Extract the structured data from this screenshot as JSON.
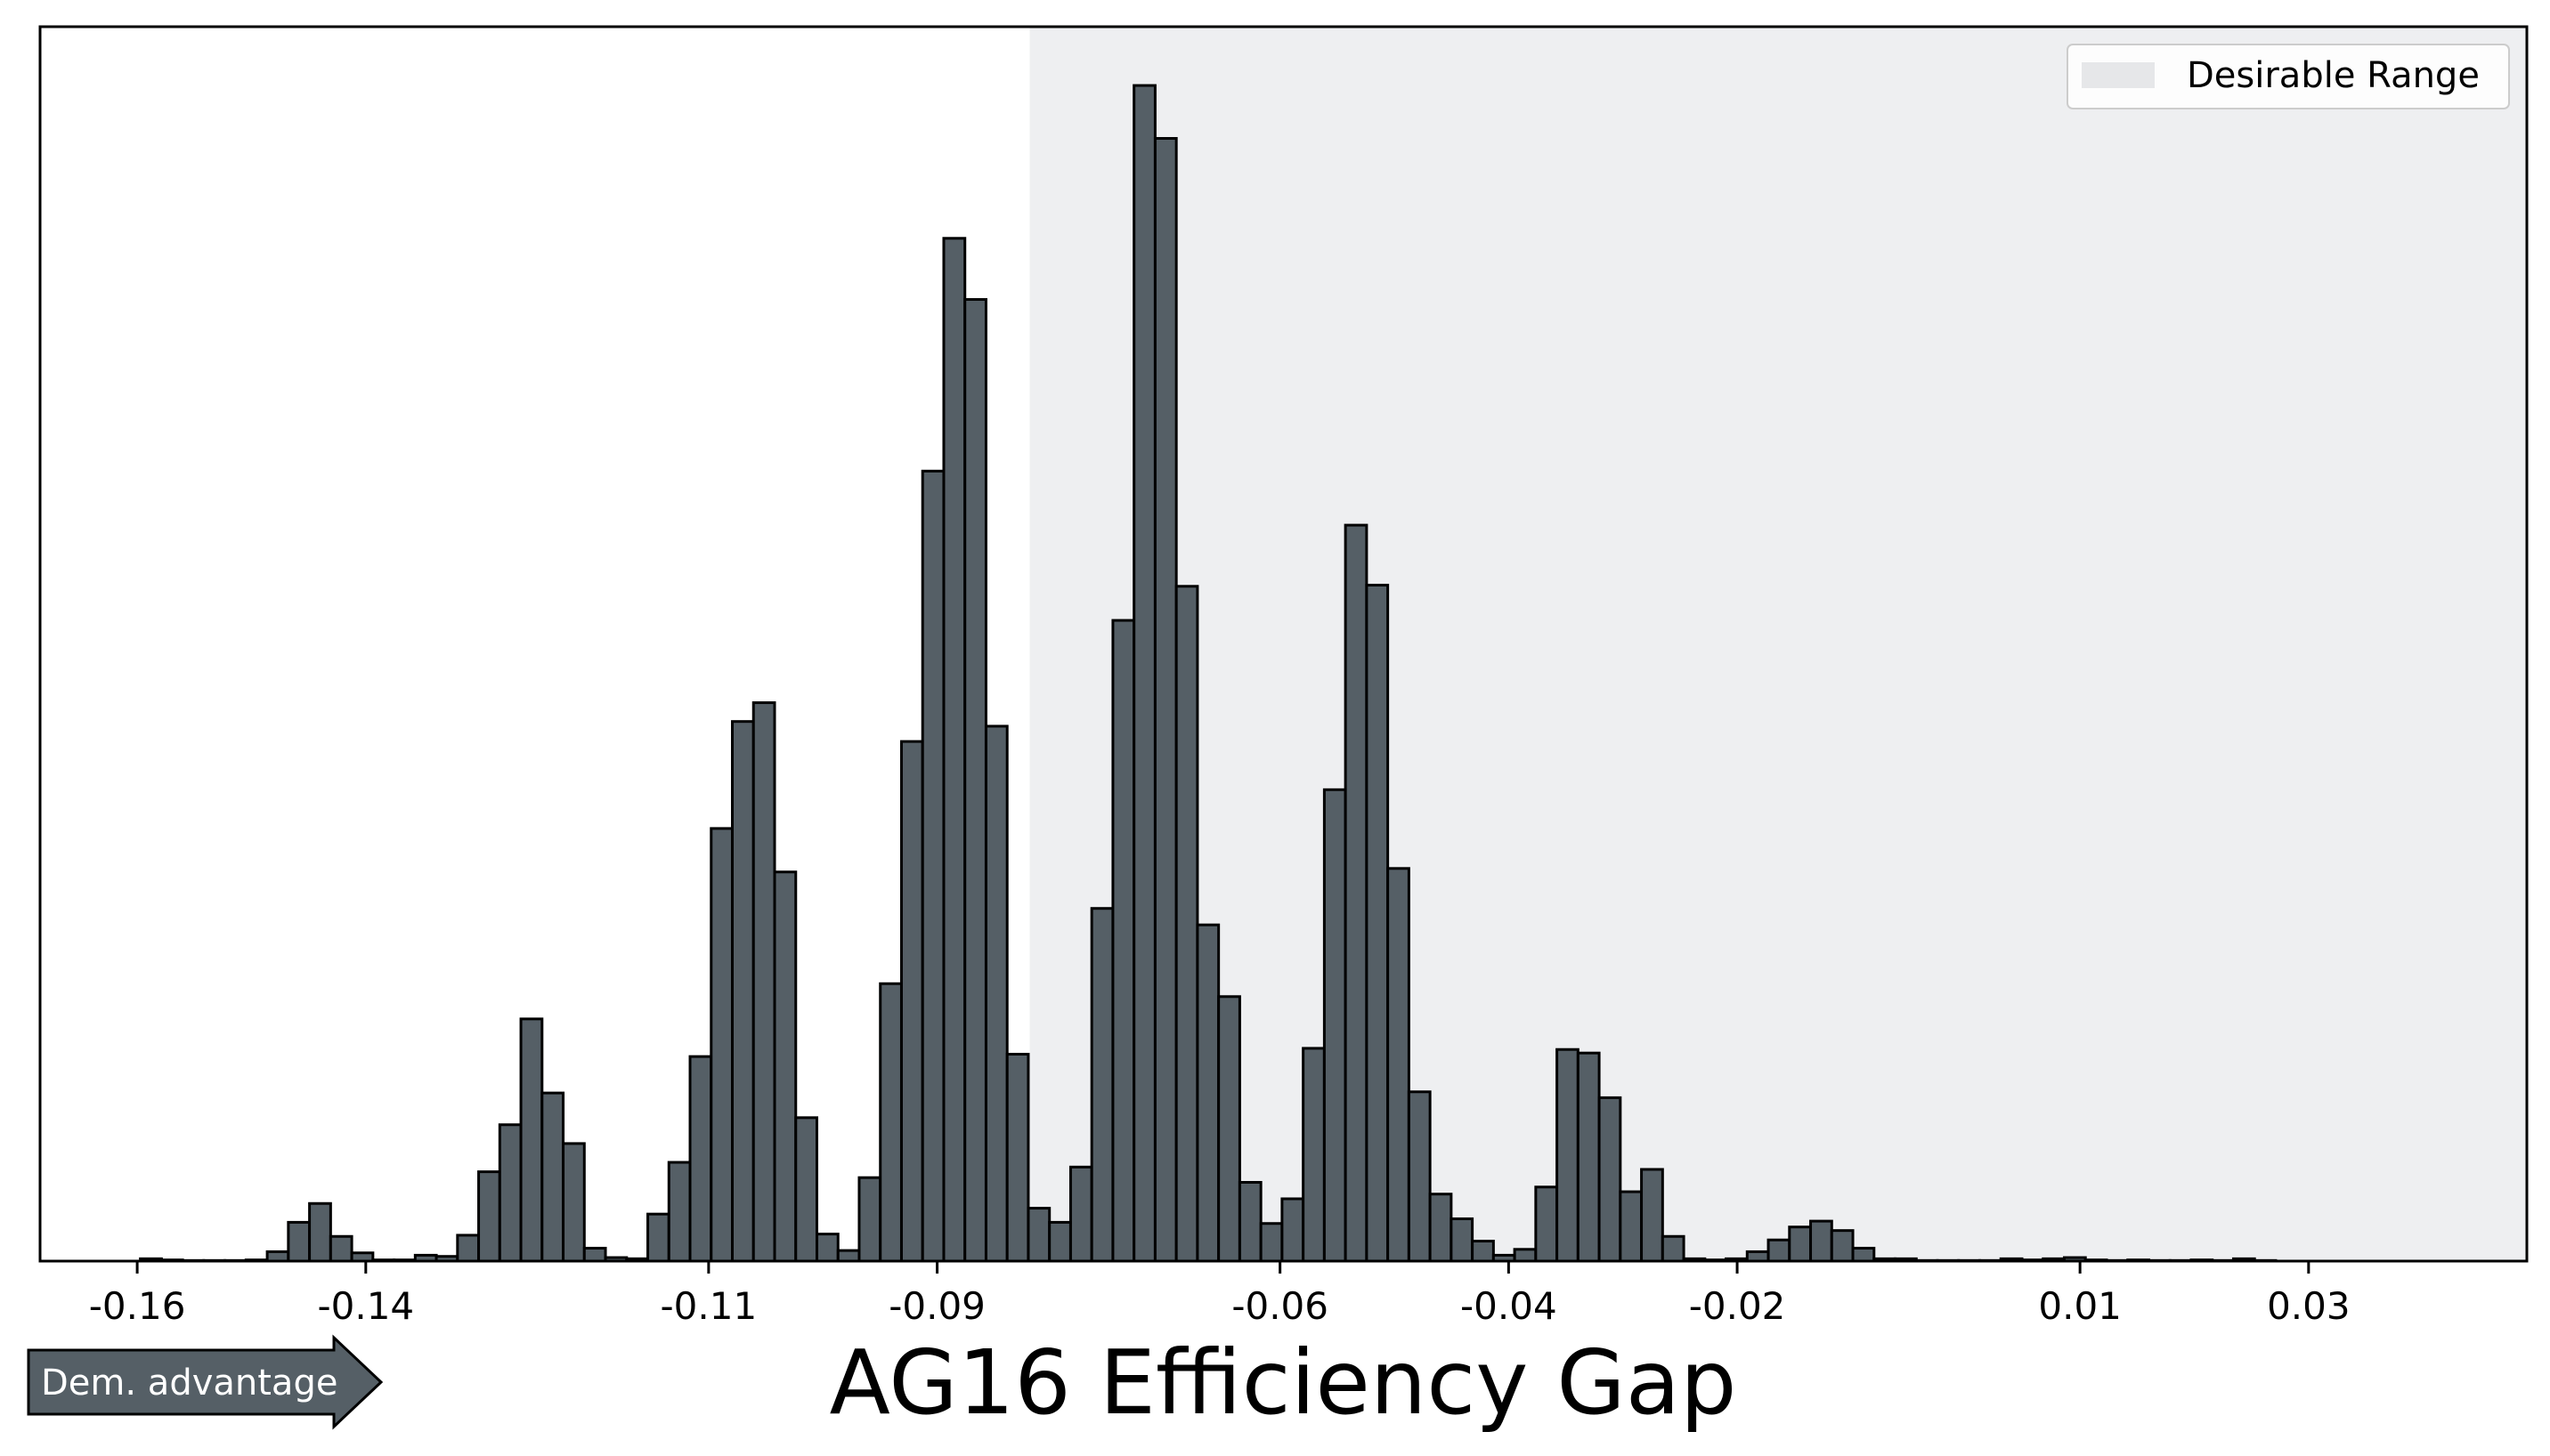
{
  "chart_data": {
    "type": "bar",
    "title": "",
    "xlabel": "AG16 Efficiency Gap",
    "ylabel": "",
    "xlim": [
      -0.1685,
      0.0491
    ],
    "ylim": [
      0,
      1.05
    ],
    "bin_width": 0.00185,
    "x_ticks": [
      -0.16,
      -0.14,
      -0.11,
      -0.09,
      -0.06,
      -0.04,
      -0.02,
      0.01,
      0.03
    ],
    "x_tick_labels": [
      "-0.16",
      "-0.14",
      "-0.11",
      "-0.09",
      "-0.06",
      "-0.04",
      "-0.02",
      "0.01",
      "0.03"
    ],
    "desirable_range": [
      -0.0819,
      0.0491
    ],
    "legend": {
      "label": "Desirable Range",
      "position": "upper right"
    },
    "colors": {
      "bar": "#555f66",
      "bar_edge": "#000000",
      "range": "#eeeff1",
      "legend_patch": "#e6e7e9"
    },
    "annotation": {
      "text": "Dem. advantage",
      "color": "#555f66"
    },
    "bars": [
      {
        "x": -0.1588,
        "value": 0.002
      },
      {
        "x": -0.15695,
        "value": 0.001
      },
      {
        "x": -0.1551,
        "value": 0.0005
      },
      {
        "x": -0.15325,
        "value": 0.0005
      },
      {
        "x": -0.1514,
        "value": 0.0005
      },
      {
        "x": -0.14955,
        "value": 0.001
      },
      {
        "x": -0.1477,
        "value": 0.008
      },
      {
        "x": -0.14585,
        "value": 0.033
      },
      {
        "x": -0.144,
        "value": 0.049
      },
      {
        "x": -0.14215,
        "value": 0.021
      },
      {
        "x": -0.1403,
        "value": 0.007
      },
      {
        "x": -0.13845,
        "value": 0.001
      },
      {
        "x": -0.1366,
        "value": 0.001
      },
      {
        "x": -0.13475,
        "value": 0.005
      },
      {
        "x": -0.1329,
        "value": 0.004
      },
      {
        "x": -0.13105,
        "value": 0.022
      },
      {
        "x": -0.1292,
        "value": 0.076
      },
      {
        "x": -0.12735,
        "value": 0.116
      },
      {
        "x": -0.1255,
        "value": 0.206
      },
      {
        "x": -0.12365,
        "value": 0.143
      },
      {
        "x": -0.1218,
        "value": 0.1
      },
      {
        "x": -0.11995,
        "value": 0.011
      },
      {
        "x": -0.1181,
        "value": 0.003
      },
      {
        "x": -0.11625,
        "value": 0.002
      },
      {
        "x": -0.1144,
        "value": 0.04
      },
      {
        "x": -0.11255,
        "value": 0.084
      },
      {
        "x": -0.1107,
        "value": 0.174
      },
      {
        "x": -0.10885,
        "value": 0.368
      },
      {
        "x": -0.107,
        "value": 0.459
      },
      {
        "x": -0.10515,
        "value": 0.475
      },
      {
        "x": -0.1033,
        "value": 0.331
      },
      {
        "x": -0.10145,
        "value": 0.122
      },
      {
        "x": -0.0996,
        "value": 0.023
      },
      {
        "x": -0.09775,
        "value": 0.009
      },
      {
        "x": -0.0959,
        "value": 0.071
      },
      {
        "x": -0.09405,
        "value": 0.236
      },
      {
        "x": -0.0922,
        "value": 0.442
      },
      {
        "x": -0.09035,
        "value": 0.672
      },
      {
        "x": -0.0885,
        "value": 0.87
      },
      {
        "x": -0.08665,
        "value": 0.818
      },
      {
        "x": -0.0848,
        "value": 0.455
      },
      {
        "x": -0.08295,
        "value": 0.176
      },
      {
        "x": -0.0811,
        "value": 0.045
      },
      {
        "x": -0.07925,
        "value": 0.033
      },
      {
        "x": -0.0774,
        "value": 0.08
      },
      {
        "x": -0.07555,
        "value": 0.3
      },
      {
        "x": -0.0737,
        "value": 0.545
      },
      {
        "x": -0.07185,
        "value": 1.0
      },
      {
        "x": -0.07,
        "value": 0.955
      },
      {
        "x": -0.06815,
        "value": 0.574
      },
      {
        "x": -0.0663,
        "value": 0.286
      },
      {
        "x": -0.06445,
        "value": 0.225
      },
      {
        "x": -0.0626,
        "value": 0.067
      },
      {
        "x": -0.06075,
        "value": 0.032
      },
      {
        "x": -0.0589,
        "value": 0.053
      },
      {
        "x": -0.05705,
        "value": 0.181
      },
      {
        "x": -0.0552,
        "value": 0.401
      },
      {
        "x": -0.05335,
        "value": 0.626
      },
      {
        "x": -0.0515,
        "value": 0.575
      },
      {
        "x": -0.04965,
        "value": 0.334
      },
      {
        "x": -0.0478,
        "value": 0.144
      },
      {
        "x": -0.04595,
        "value": 0.057
      },
      {
        "x": -0.0441,
        "value": 0.036
      },
      {
        "x": -0.04225,
        "value": 0.017
      },
      {
        "x": -0.0404,
        "value": 0.005
      },
      {
        "x": -0.03855,
        "value": 0.01
      },
      {
        "x": -0.0367,
        "value": 0.063
      },
      {
        "x": -0.03485,
        "value": 0.18
      },
      {
        "x": -0.033,
        "value": 0.177
      },
      {
        "x": -0.03115,
        "value": 0.139
      },
      {
        "x": -0.0293,
        "value": 0.059
      },
      {
        "x": -0.02745,
        "value": 0.078
      },
      {
        "x": -0.0256,
        "value": 0.021
      },
      {
        "x": -0.02375,
        "value": 0.002
      },
      {
        "x": -0.0219,
        "value": 0.001
      },
      {
        "x": -0.02005,
        "value": 0.002
      },
      {
        "x": -0.0182,
        "value": 0.008
      },
      {
        "x": -0.01635,
        "value": 0.018
      },
      {
        "x": -0.0145,
        "value": 0.029
      },
      {
        "x": -0.01265,
        "value": 0.034
      },
      {
        "x": -0.0108,
        "value": 0.026
      },
      {
        "x": -0.00895,
        "value": 0.011
      },
      {
        "x": -0.0071,
        "value": 0.002
      },
      {
        "x": -0.00525,
        "value": 0.002
      },
      {
        "x": -0.0034,
        "value": 0.0005
      },
      {
        "x": -0.00155,
        "value": 0.0005
      },
      {
        "x": 0.0003,
        "value": 0.0005
      },
      {
        "x": 0.00215,
        "value": 0.0005
      },
      {
        "x": 0.004,
        "value": 0.002
      },
      {
        "x": 0.00585,
        "value": 0.001
      },
      {
        "x": 0.0077,
        "value": 0.002
      },
      {
        "x": 0.00955,
        "value": 0.003
      },
      {
        "x": 0.0114,
        "value": 0.001
      },
      {
        "x": 0.01325,
        "value": 0.0005
      },
      {
        "x": 0.0151,
        "value": 0.001
      },
      {
        "x": 0.01695,
        "value": 0.0005
      },
      {
        "x": 0.0188,
        "value": 0.0005
      },
      {
        "x": 0.02065,
        "value": 0.001
      },
      {
        "x": 0.0225,
        "value": 0.0005
      },
      {
        "x": 0.02435,
        "value": 0.002
      },
      {
        "x": 0.0262,
        "value": 0.0005
      }
    ]
  }
}
